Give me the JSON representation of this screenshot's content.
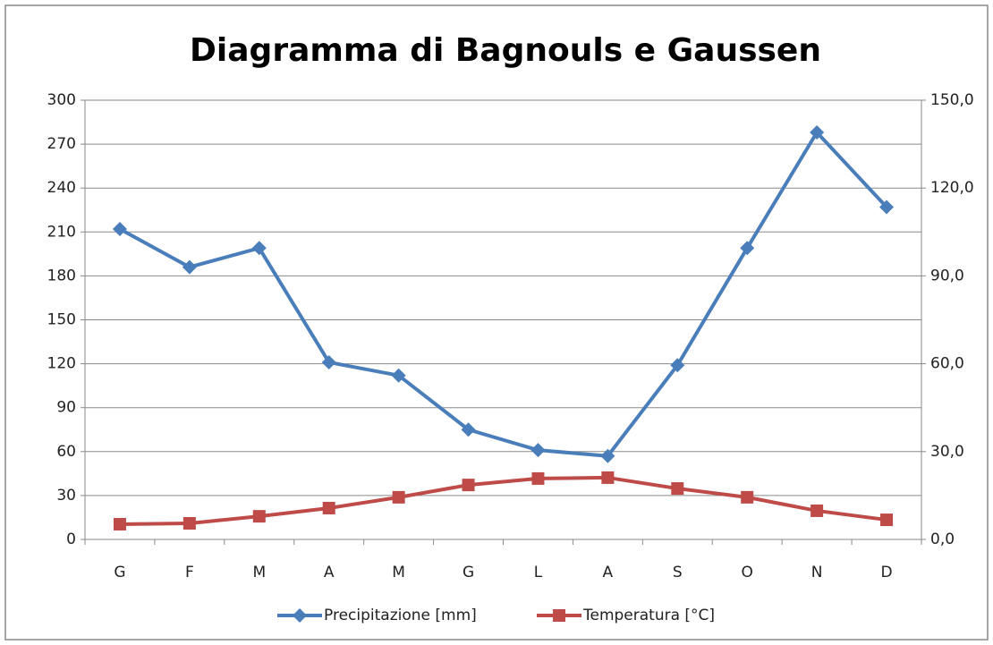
{
  "chart_data": {
    "type": "line",
    "title": "Diagramma di Bagnouls e Gaussen",
    "categories": [
      "G",
      "F",
      "M",
      "A",
      "M",
      "G",
      "L",
      "A",
      "S",
      "O",
      "N",
      "D"
    ],
    "series": [
      {
        "name": "Precipitazione [mm]",
        "color": "#4a7ebb",
        "marker": "diamond",
        "values": [
          212,
          186,
          199,
          121,
          112,
          75,
          61,
          57,
          119,
          199,
          278,
          227
        ]
      },
      {
        "name": "Temperatura  [°C]",
        "color": "#be4b48",
        "marker": "square",
        "axis": "y2",
        "values": [
          5.2,
          5.5,
          7.9,
          10.7,
          14.4,
          18.6,
          20.8,
          21.1,
          17.4,
          14.4,
          9.8,
          6.7
        ]
      }
    ],
    "ylim": [
      0,
      300
    ],
    "yticks": [
      0,
      30,
      60,
      90,
      120,
      150,
      180,
      210,
      240,
      270,
      300
    ],
    "y2lim": [
      0,
      150
    ],
    "y2ticks": [
      {
        "value": 0,
        "label": "0,0"
      },
      {
        "value": 30,
        "label": "30,0"
      },
      {
        "value": 60,
        "label": "60,0"
      },
      {
        "value": 90,
        "label": "90,0"
      },
      {
        "value": 120,
        "label": "120,0"
      },
      {
        "value": 150,
        "label": "150,0"
      }
    ],
    "grid": true,
    "legend": "bottom"
  }
}
